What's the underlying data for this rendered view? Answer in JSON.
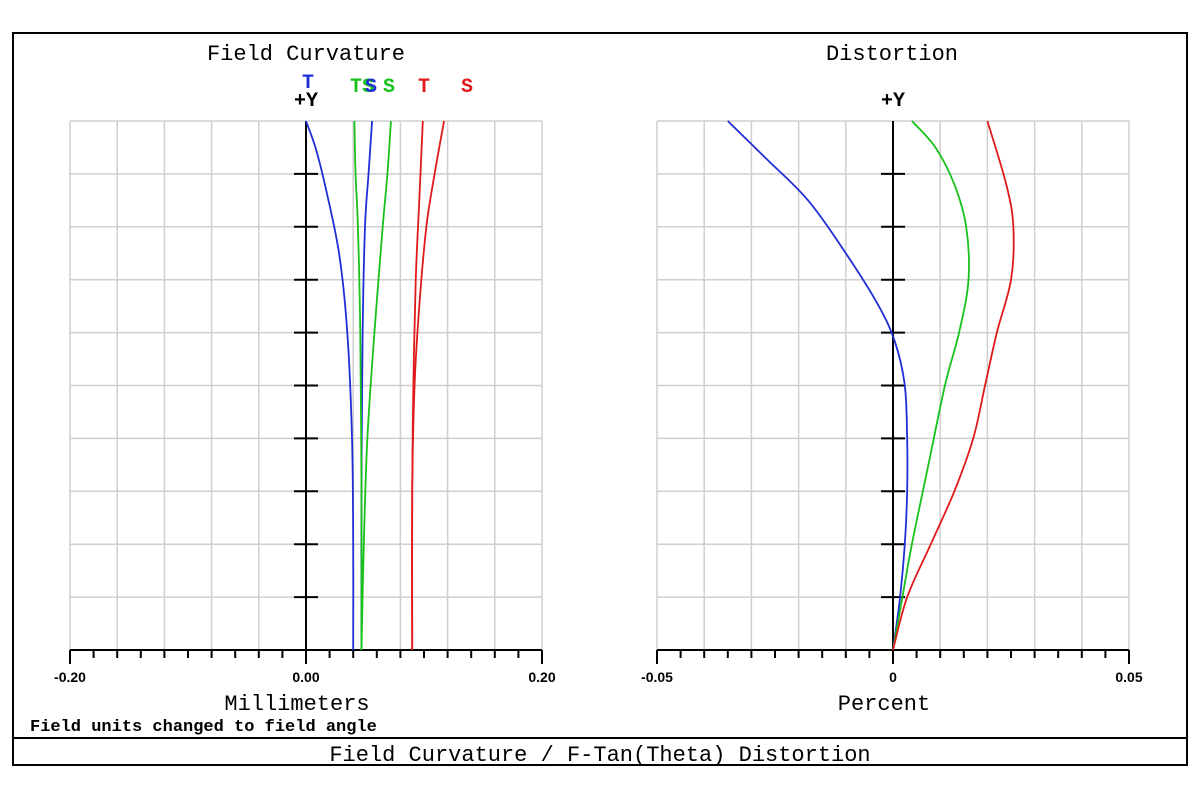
{
  "footer": {
    "title": "Field Curvature / F-Tan(Theta) Distortion"
  },
  "note": "Field units changed to field angle",
  "colors": {
    "blue": "#1f2fd6",
    "green": "#18c21a",
    "red": "#e01a1a",
    "grid": "#cfcfcf"
  },
  "chart_data": [
    {
      "type": "line",
      "title": "Field Curvature",
      "xlabel": "Millimeters",
      "ylabel": "+Y",
      "xlim": [
        -0.2,
        0.2
      ],
      "ylim": [
        0,
        1
      ],
      "x_tick_labels": [
        "-0.20",
        "0.00",
        "0.20"
      ],
      "grid": true,
      "legend": [
        {
          "text": "T",
          "color": "#1f2fd6"
        },
        {
          "text": "TS",
          "color": "#18c21a"
        },
        {
          "text": "S",
          "color": "#1f2fd6"
        },
        {
          "text": "S",
          "color": "#18c21a"
        },
        {
          "text": "T",
          "color": "#e01a1a"
        },
        {
          "text": "S",
          "color": "#e01a1a"
        }
      ],
      "series": [
        {
          "color": "#1f2fd6",
          "points": [
            [
              0.04,
              0
            ],
            [
              0.04,
              0.2
            ],
            [
              0.039,
              0.4
            ],
            [
              0.035,
              0.6
            ],
            [
              0.028,
              0.75
            ],
            [
              0.016,
              0.88
            ],
            [
              0.008,
              0.95
            ],
            [
              0.0,
              1.0
            ]
          ]
        },
        {
          "color": "#1f2fd6",
          "points": [
            [
              0.047,
              0
            ],
            [
              0.047,
              0.3
            ],
            [
              0.048,
              0.6
            ],
            [
              0.05,
              0.8
            ],
            [
              0.053,
              0.9
            ],
            [
              0.056,
              1.0
            ]
          ]
        },
        {
          "color": "#18c21a",
          "points": [
            [
              0.047,
              0
            ],
            [
              0.047,
              0.3
            ],
            [
              0.046,
              0.6
            ],
            [
              0.044,
              0.8
            ],
            [
              0.042,
              0.9
            ],
            [
              0.041,
              1.0
            ]
          ]
        },
        {
          "color": "#18c21a",
          "points": [
            [
              0.047,
              0
            ],
            [
              0.049,
              0.2
            ],
            [
              0.052,
              0.4
            ],
            [
              0.058,
              0.6
            ],
            [
              0.065,
              0.8
            ],
            [
              0.069,
              0.9
            ],
            [
              0.072,
              1.0
            ]
          ]
        },
        {
          "color": "#e01a1a",
          "points": [
            [
              0.09,
              0
            ],
            [
              0.09,
              0.3
            ],
            [
              0.091,
              0.5
            ],
            [
              0.093,
              0.7
            ],
            [
              0.096,
              0.85
            ],
            [
              0.098,
              0.95
            ],
            [
              0.099,
              1.0
            ]
          ]
        },
        {
          "color": "#e01a1a",
          "points": [
            [
              0.09,
              0
            ],
            [
              0.09,
              0.3
            ],
            [
              0.092,
              0.5
            ],
            [
              0.096,
              0.65
            ],
            [
              0.102,
              0.8
            ],
            [
              0.109,
              0.9
            ],
            [
              0.117,
              1.0
            ]
          ]
        }
      ]
    },
    {
      "type": "line",
      "title": "Distortion",
      "xlabel": "Percent",
      "ylabel": "+Y",
      "xlim": [
        -0.05,
        0.05
      ],
      "ylim": [
        0,
        1
      ],
      "x_tick_labels": [
        "-0.05",
        "0",
        "0.05"
      ],
      "grid": true,
      "series": [
        {
          "color": "#1f2fd6",
          "points": [
            [
              0,
              0
            ],
            [
              0.0015,
              0.1
            ],
            [
              0.0025,
              0.2
            ],
            [
              0.003,
              0.3
            ],
            [
              0.003,
              0.4
            ],
            [
              0.0025,
              0.5
            ],
            [
              0.0005,
              0.58
            ],
            [
              -0.003,
              0.65
            ],
            [
              -0.01,
              0.75
            ],
            [
              -0.018,
              0.85
            ],
            [
              -0.027,
              0.93
            ],
            [
              -0.035,
              1.0
            ]
          ]
        },
        {
          "color": "#18c21a",
          "points": [
            [
              0,
              0
            ],
            [
              0.002,
              0.1
            ],
            [
              0.004,
              0.2
            ],
            [
              0.0075,
              0.35
            ],
            [
              0.011,
              0.5
            ],
            [
              0.014,
              0.6
            ],
            [
              0.016,
              0.7
            ],
            [
              0.0155,
              0.8
            ],
            [
              0.013,
              0.88
            ],
            [
              0.009,
              0.95
            ],
            [
              0.004,
              1.0
            ]
          ]
        },
        {
          "color": "#e01a1a",
          "points": [
            [
              0,
              0
            ],
            [
              0.003,
              0.1
            ],
            [
              0.008,
              0.2
            ],
            [
              0.013,
              0.3
            ],
            [
              0.017,
              0.4
            ],
            [
              0.0195,
              0.5
            ],
            [
              0.022,
              0.6
            ],
            [
              0.025,
              0.7
            ],
            [
              0.0255,
              0.8
            ],
            [
              0.024,
              0.88
            ],
            [
              0.02,
              1.0
            ]
          ]
        }
      ]
    }
  ]
}
